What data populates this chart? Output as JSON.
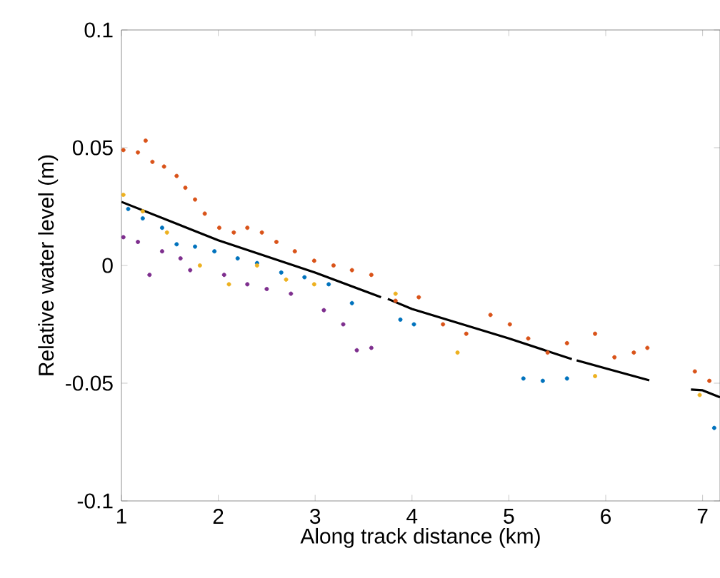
{
  "chart_data": {
    "type": "scatter",
    "xlabel": "Along track distance (km)",
    "ylabel": "Relative water level (m)",
    "xlim": [
      1,
      7.18
    ],
    "ylim": [
      -0.1,
      0.1
    ],
    "xticks": [
      1,
      2,
      3,
      4,
      5,
      6,
      7
    ],
    "yticks": [
      -0.1,
      -0.05,
      0,
      0.05,
      0.1
    ],
    "series": [
      {
        "marker": "circle",
        "color": "#d95319",
        "x": [
          1.02,
          1.17,
          1.25,
          1.32,
          1.44,
          1.57,
          1.66,
          1.76,
          1.86,
          2.01,
          2.16,
          2.3,
          2.45,
          2.6,
          2.79,
          2.99,
          3.19,
          3.38,
          3.58,
          3.83,
          4.07,
          4.32,
          4.56,
          4.81,
          5.01,
          5.2,
          5.4,
          5.6,
          5.89,
          6.09,
          6.29,
          6.43,
          6.92,
          7.07
        ],
        "values": [
          0.049,
          0.048,
          0.053,
          0.044,
          0.042,
          0.038,
          0.033,
          0.028,
          0.022,
          0.016,
          0.014,
          0.016,
          0.014,
          0.01,
          0.006,
          0.002,
          0.0,
          -0.002,
          -0.004,
          -0.015,
          -0.0135,
          -0.025,
          -0.029,
          -0.021,
          -0.025,
          -0.031,
          -0.037,
          -0.033,
          -0.029,
          -0.039,
          -0.037,
          -0.035,
          -0.045,
          -0.049
        ]
      },
      {
        "marker": "circle",
        "color": "#0072bd",
        "x": [
          1.07,
          1.22,
          1.42,
          1.57,
          1.76,
          1.96,
          2.2,
          2.4,
          2.65,
          2.89,
          3.14,
          3.38,
          3.88,
          4.02,
          5.15,
          5.35,
          5.6,
          7.12
        ],
        "values": [
          0.024,
          0.02,
          0.016,
          0.009,
          0.008,
          0.006,
          0.003,
          0.001,
          -0.003,
          -0.005,
          -0.008,
          -0.016,
          -0.023,
          -0.025,
          -0.048,
          -0.049,
          -0.048,
          -0.069
        ]
      },
      {
        "marker": "circle",
        "color": "#7e2f8e",
        "x": [
          1.02,
          1.17,
          1.29,
          1.42,
          1.61,
          1.71,
          2.06,
          2.3,
          2.5,
          2.75,
          3.09,
          3.29,
          3.43,
          3.58
        ],
        "values": [
          0.012,
          0.01,
          -0.004,
          0.006,
          0.003,
          -0.002,
          -0.004,
          -0.008,
          -0.01,
          -0.012,
          -0.019,
          -0.025,
          -0.036,
          -0.035
        ]
      },
      {
        "marker": "circle",
        "color": "#edb120",
        "x": [
          1.02,
          1.22,
          1.47,
          1.81,
          2.11,
          2.4,
          2.7,
          2.99,
          3.83,
          4.47,
          5.89,
          6.97
        ],
        "values": [
          0.03,
          0.023,
          0.014,
          0.0,
          -0.008,
          0.0,
          -0.006,
          -0.008,
          -0.012,
          -0.037,
          -0.047,
          -0.055
        ]
      },
      {
        "type": "line",
        "marker": "none",
        "color": "#000000",
        "x": [
          1,
          2,
          3,
          3.68,
          3.7,
          3.75,
          4,
          5,
          5.65,
          5.67,
          5.7,
          6,
          6.45,
          6.5,
          6.88,
          7,
          7.18
        ],
        "values": [
          0.027,
          0.0107,
          -0.003,
          -0.0135,
          null,
          -0.0142,
          -0.0185,
          -0.031,
          -0.0398,
          null,
          -0.0403,
          -0.0437,
          -0.0488,
          null,
          -0.0527,
          -0.053,
          -0.056
        ]
      }
    ]
  }
}
